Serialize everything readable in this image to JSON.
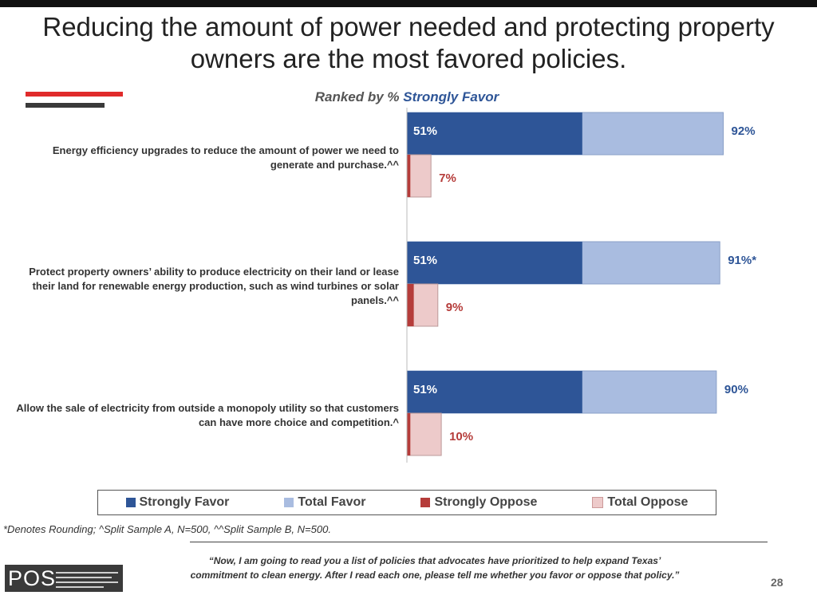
{
  "title": "Reducing the amount of power needed and protecting property owners are the most favored policies.",
  "subtitle": {
    "prefix": "Ranked by % ",
    "highlight": "Strongly Favor"
  },
  "colors": {
    "strongly_favor": "#2e5597",
    "total_favor": "#a9bce0",
    "strongly_oppose": "#b53c3a",
    "total_oppose": "#edcaca",
    "favor_text": "#2e5597",
    "oppose_text": "#b53c3a"
  },
  "chart_data": {
    "type": "bar",
    "orientation": "horizontal",
    "stacking": "overlay",
    "title": "Ranked by % Strongly Favor",
    "categories": [
      "Energy efficiency upgrades to reduce the amount of power we need to generate and purchase.^^",
      "Protect property owners’ ability to produce electricity on their land or lease their land for renewable energy production, such as wind turbines or solar panels.^^",
      "Allow the sale of electricity from outside a monopoly utility so that customers can have more choice and competition.^"
    ],
    "series": [
      {
        "name": "Strongly Favor",
        "values": [
          51,
          51,
          51
        ]
      },
      {
        "name": "Total Favor",
        "values": [
          92,
          91,
          90
        ]
      },
      {
        "name": "Strongly Oppose",
        "values": [
          1,
          2,
          1
        ]
      },
      {
        "name": "Total Oppose",
        "values": [
          7,
          9,
          10
        ]
      }
    ],
    "bar_labels": [
      {
        "strongly_favor": "51%",
        "total_favor": "92%",
        "total_oppose": "7%"
      },
      {
        "strongly_favor": "51%",
        "total_favor": "91%*",
        "total_oppose": "9%"
      },
      {
        "strongly_favor": "51%",
        "total_favor": "90%",
        "total_oppose": "10%"
      }
    ],
    "xlim": [
      0,
      100
    ],
    "grid": false,
    "legend_position": "bottom"
  },
  "legend": [
    "Strongly Favor",
    "Total Favor",
    "Strongly Oppose",
    "Total Oppose"
  ],
  "footnote": "*Denotes Rounding; ^Split Sample A, N=500, ^^Split Sample B, N=500.",
  "quote_line1": "“Now, I am going to read you a list of policies that advocates have prioritized to help expand Texas’",
  "quote_line2": "commitment to clean energy. After I read each one, please tell me whether you favor or oppose that policy.”",
  "logo_text": "POS",
  "page_number": "28"
}
